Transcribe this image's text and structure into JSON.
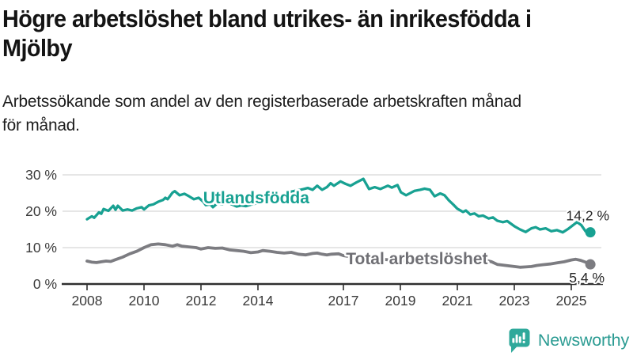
{
  "title": "Högre arbetslöshet bland utrikes- än inrikesfödda i\nMjölby",
  "subtitle": "Arbetssökande som andel av den registerbaserade arbetskraften månad\nför månad.",
  "branding": {
    "name": "Newsworthy",
    "logo_icon": "bar-chart-speech-bubble-icon",
    "color": "#2C9C93"
  },
  "chart_data": {
    "type": "line",
    "title": "Högre arbetslöshet bland utrikes- än inrikesfödda i Mjölby",
    "subtitle": "Arbetssökande som andel av den registerbaserade arbetskraften månad för månad.",
    "xlabel": "",
    "ylabel": "",
    "unit": "%",
    "grid": "horizontal",
    "legend_position": "inline-labels",
    "x_axis": {
      "min": 2007.4,
      "max": 2026.2,
      "ticks": [
        {
          "year": 2008,
          "label": "2008"
        },
        {
          "year": 2010,
          "label": "2010"
        },
        {
          "year": 2012,
          "label": "2012"
        },
        {
          "year": 2014,
          "label": "2014"
        },
        {
          "year": 2017,
          "label": "2017"
        },
        {
          "year": 2019,
          "label": "2019"
        },
        {
          "year": 2021,
          "label": "2021"
        },
        {
          "year": 2023,
          "label": "2023"
        },
        {
          "year": 2025,
          "label": "2025"
        }
      ]
    },
    "y_axis": {
      "min": 0,
      "max": 30,
      "ticks": [
        {
          "value": 0,
          "label": "0 %"
        },
        {
          "value": 10,
          "label": "10 %"
        },
        {
          "value": 20,
          "label": "20 %"
        },
        {
          "value": 30,
          "label": "30 %"
        }
      ]
    },
    "colors": {
      "utlandsfodda": "#18A192",
      "total": "#7C7C81",
      "grid": "#D8D8D8",
      "axis": "#2F2F2F",
      "tick_text": "#3A3A3A",
      "value_text": "#262626",
      "total_label_text": "#6F6F74"
    },
    "series": [
      {
        "name": "Utlandsfödda",
        "color_key": "utlandsfodda",
        "end_label": "14,2 %",
        "end_value": 14.2,
        "label_annotation": {
          "text": "Utlandsfödda",
          "anchor_year": 2013.94,
          "anchor_value": 22.2
        },
        "points": [
          [
            2008.0,
            17.8
          ],
          [
            2008.17,
            18.6
          ],
          [
            2008.25,
            18.2
          ],
          [
            2008.42,
            19.7
          ],
          [
            2008.5,
            19.3
          ],
          [
            2008.58,
            20.6
          ],
          [
            2008.75,
            20.1
          ],
          [
            2008.92,
            21.5
          ],
          [
            2009.0,
            20.4
          ],
          [
            2009.08,
            21.5
          ],
          [
            2009.25,
            20.2
          ],
          [
            2009.42,
            20.5
          ],
          [
            2009.58,
            20.2
          ],
          [
            2009.75,
            20.8
          ],
          [
            2009.92,
            21.1
          ],
          [
            2010.0,
            20.5
          ],
          [
            2010.17,
            21.6
          ],
          [
            2010.33,
            21.9
          ],
          [
            2010.5,
            22.6
          ],
          [
            2010.67,
            23.1
          ],
          [
            2010.75,
            23.7
          ],
          [
            2010.83,
            23.3
          ],
          [
            2011.0,
            25.1
          ],
          [
            2011.08,
            25.5
          ],
          [
            2011.25,
            24.4
          ],
          [
            2011.42,
            24.8
          ],
          [
            2011.58,
            24.1
          ],
          [
            2011.75,
            23.3
          ],
          [
            2011.92,
            23.7
          ],
          [
            2012.08,
            22.6
          ],
          [
            2012.17,
            21.7
          ],
          [
            2012.33,
            21.9
          ],
          [
            2012.42,
            21.1
          ],
          [
            2012.58,
            22.2
          ],
          [
            2012.75,
            21.9
          ],
          [
            2012.92,
            22.4
          ],
          [
            2013.08,
            21.9
          ],
          [
            2013.25,
            21.3
          ],
          [
            2013.42,
            21.6
          ],
          [
            2013.58,
            21.4
          ],
          [
            2013.75,
            21.8
          ],
          [
            2013.92,
            22.1
          ],
          [
            2014.17,
            22.5
          ],
          [
            2014.42,
            23.0
          ],
          [
            2014.67,
            23.6
          ],
          [
            2014.92,
            24.2
          ],
          [
            2015.17,
            25.4
          ],
          [
            2015.5,
            25.9
          ],
          [
            2015.75,
            26.4
          ],
          [
            2015.92,
            25.9
          ],
          [
            2016.08,
            27.0
          ],
          [
            2016.25,
            25.9
          ],
          [
            2016.42,
            26.6
          ],
          [
            2016.55,
            27.7
          ],
          [
            2016.67,
            27.0
          ],
          [
            2016.9,
            28.2
          ],
          [
            2017.08,
            27.5
          ],
          [
            2017.25,
            27.0
          ],
          [
            2017.45,
            27.9
          ],
          [
            2017.7,
            28.9
          ],
          [
            2017.9,
            26.1
          ],
          [
            2018.1,
            26.6
          ],
          [
            2018.3,
            26.1
          ],
          [
            2018.56,
            27.0
          ],
          [
            2018.7,
            26.5
          ],
          [
            2018.9,
            27.2
          ],
          [
            2019.02,
            25.2
          ],
          [
            2019.2,
            24.4
          ],
          [
            2019.5,
            25.6
          ],
          [
            2019.7,
            25.9
          ],
          [
            2019.85,
            26.2
          ],
          [
            2020.04,
            25.9
          ],
          [
            2020.2,
            24.1
          ],
          [
            2020.4,
            24.9
          ],
          [
            2020.55,
            24.4
          ],
          [
            2020.7,
            23.0
          ],
          [
            2020.85,
            21.9
          ],
          [
            2021.0,
            20.7
          ],
          [
            2021.2,
            19.8
          ],
          [
            2021.3,
            20.2
          ],
          [
            2021.45,
            19.1
          ],
          [
            2021.6,
            19.4
          ],
          [
            2021.75,
            18.6
          ],
          [
            2021.9,
            18.8
          ],
          [
            2022.1,
            18.0
          ],
          [
            2022.25,
            18.3
          ],
          [
            2022.4,
            17.4
          ],
          [
            2022.6,
            17.0
          ],
          [
            2022.75,
            17.3
          ],
          [
            2023.0,
            15.9
          ],
          [
            2023.2,
            15.0
          ],
          [
            2023.4,
            14.3
          ],
          [
            2023.6,
            15.3
          ],
          [
            2023.75,
            15.6
          ],
          [
            2023.9,
            15.0
          ],
          [
            2024.1,
            15.3
          ],
          [
            2024.3,
            14.5
          ],
          [
            2024.5,
            14.8
          ],
          [
            2024.7,
            14.2
          ],
          [
            2024.9,
            15.2
          ],
          [
            2025.1,
            16.4
          ],
          [
            2025.2,
            17.0
          ],
          [
            2025.35,
            16.2
          ],
          [
            2025.5,
            14.5
          ],
          [
            2025.58,
            13.9
          ],
          [
            2025.67,
            14.2
          ]
        ]
      },
      {
        "name": "Total arbetslöshet",
        "color_key": "total",
        "end_label": "5,4 %",
        "end_value": 5.4,
        "label_annotation": {
          "text": "Total arbetslöshet",
          "anchor_year": 2019.58,
          "anchor_value": 5.4
        },
        "points": [
          [
            2008.0,
            6.3
          ],
          [
            2008.17,
            6.0
          ],
          [
            2008.33,
            5.9
          ],
          [
            2008.5,
            6.1
          ],
          [
            2008.67,
            6.3
          ],
          [
            2008.83,
            6.2
          ],
          [
            2009.0,
            6.7
          ],
          [
            2009.25,
            7.4
          ],
          [
            2009.5,
            8.3
          ],
          [
            2009.75,
            9.0
          ],
          [
            2010.0,
            10.0
          ],
          [
            2010.25,
            10.8
          ],
          [
            2010.5,
            11.0
          ],
          [
            2010.75,
            10.8
          ],
          [
            2011.0,
            10.4
          ],
          [
            2011.17,
            10.8
          ],
          [
            2011.33,
            10.4
          ],
          [
            2011.58,
            10.2
          ],
          [
            2011.83,
            10.0
          ],
          [
            2012.0,
            9.6
          ],
          [
            2012.25,
            10.0
          ],
          [
            2012.5,
            9.8
          ],
          [
            2012.75,
            9.9
          ],
          [
            2013.0,
            9.4
          ],
          [
            2013.25,
            9.2
          ],
          [
            2013.5,
            9.0
          ],
          [
            2013.75,
            8.6
          ],
          [
            2014.0,
            8.8
          ],
          [
            2014.17,
            9.2
          ],
          [
            2014.42,
            9.0
          ],
          [
            2014.67,
            8.7
          ],
          [
            2014.92,
            8.5
          ],
          [
            2015.17,
            8.7
          ],
          [
            2015.42,
            8.2
          ],
          [
            2015.67,
            8.0
          ],
          [
            2015.92,
            8.4
          ],
          [
            2016.08,
            8.5
          ],
          [
            2016.25,
            8.2
          ],
          [
            2016.42,
            8.0
          ],
          [
            2016.58,
            8.2
          ],
          [
            2016.83,
            8.3
          ],
          [
            2017.0,
            7.8
          ],
          [
            2017.25,
            7.5
          ],
          [
            2017.5,
            7.3
          ],
          [
            2017.75,
            7.1
          ],
          [
            2018.0,
            7.0
          ],
          [
            2018.33,
            6.8
          ],
          [
            2018.67,
            6.6
          ],
          [
            2019.0,
            6.4
          ],
          [
            2019.33,
            6.3
          ],
          [
            2019.67,
            6.3
          ],
          [
            2020.0,
            6.8
          ],
          [
            2020.25,
            7.5
          ],
          [
            2020.5,
            7.7
          ],
          [
            2020.75,
            7.5
          ],
          [
            2021.0,
            7.2
          ],
          [
            2021.25,
            6.9
          ],
          [
            2021.5,
            6.7
          ],
          [
            2021.75,
            6.6
          ],
          [
            2022.0,
            6.5
          ],
          [
            2022.2,
            6.1
          ],
          [
            2022.4,
            5.4
          ],
          [
            2022.6,
            5.2
          ],
          [
            2022.8,
            5.0
          ],
          [
            2023.0,
            4.8
          ],
          [
            2023.2,
            4.6
          ],
          [
            2023.4,
            4.7
          ],
          [
            2023.6,
            4.8
          ],
          [
            2023.8,
            5.1
          ],
          [
            2024.0,
            5.3
          ],
          [
            2024.25,
            5.5
          ],
          [
            2024.5,
            5.8
          ],
          [
            2024.75,
            6.1
          ],
          [
            2025.0,
            6.6
          ],
          [
            2025.15,
            6.8
          ],
          [
            2025.33,
            6.5
          ],
          [
            2025.5,
            6.0
          ],
          [
            2025.67,
            5.4
          ]
        ]
      }
    ]
  }
}
